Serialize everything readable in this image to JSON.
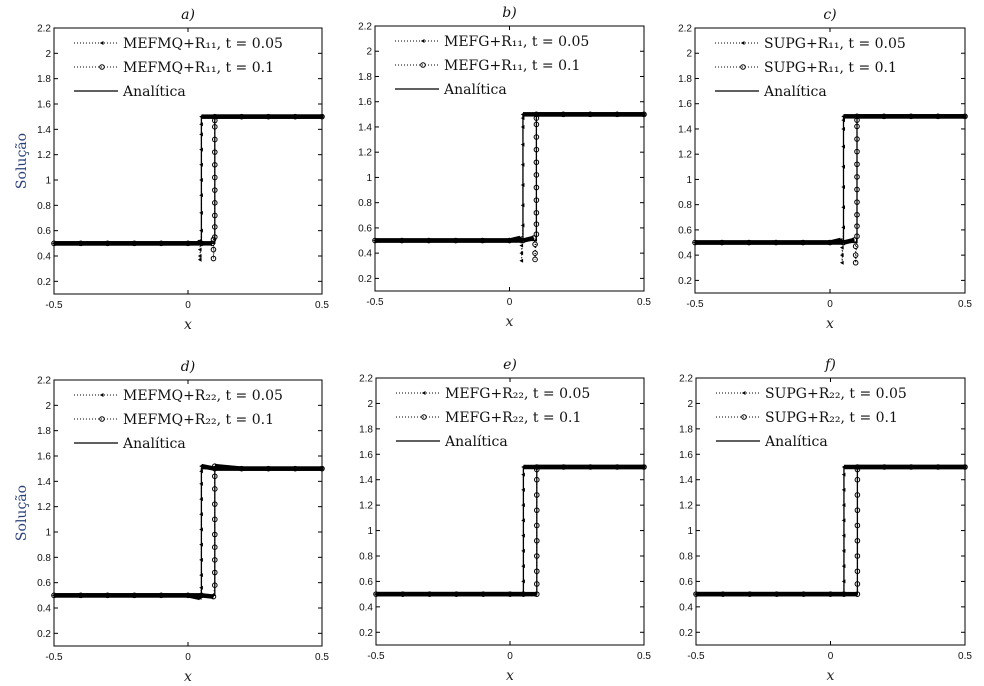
{
  "chart_data": [
    {
      "type": "line",
      "title": "a)",
      "xlabel": "x",
      "ylabel": "Solução",
      "xlim": [
        -0.5,
        0.5
      ],
      "ylim": [
        0.1,
        2.2
      ],
      "xticks": [
        "-0.5",
        "0",
        "0.5"
      ],
      "yticks": [
        "0.2",
        "0.4",
        "0.6",
        "0.8",
        "1",
        "1.2",
        "1.4",
        "1.6",
        "1.8",
        "2",
        "2.2"
      ],
      "legend_position": "top-left",
      "series": [
        {
          "name": "MEFMQ+R₁₁, t = 0.05",
          "marker": "triangle-left",
          "style": "dotted",
          "x": [
            -0.5,
            -0.4,
            -0.3,
            -0.2,
            -0.1,
            0,
            0.04,
            0.045,
            0.045,
            0.045,
            0.045,
            0.05,
            0.05,
            0.05,
            0.05,
            0.05,
            0.05,
            0.05,
            0.05,
            0.05,
            0.1,
            0.2,
            0.3,
            0.4,
            0.5
          ],
          "y": [
            0.5,
            0.5,
            0.5,
            0.5,
            0.5,
            0.5,
            0.5,
            0.52,
            0.45,
            0.4,
            0.37,
            0.6,
            0.74,
            0.88,
            1.0,
            1.12,
            1.24,
            1.36,
            1.44,
            1.5,
            1.5,
            1.5,
            1.5,
            1.5,
            1.5
          ]
        },
        {
          "name": "MEFMQ+R₁₁, t = 0.1",
          "marker": "circle",
          "style": "dotted",
          "x": [
            -0.5,
            -0.4,
            -0.3,
            -0.2,
            -0.1,
            0,
            0.05,
            0.09,
            0.095,
            0.095,
            0.095,
            0.1,
            0.1,
            0.1,
            0.1,
            0.1,
            0.1,
            0.1,
            0.1,
            0.1,
            0.1,
            0.1,
            0.1,
            0.2,
            0.3,
            0.4,
            0.5
          ],
          "y": [
            0.5,
            0.5,
            0.5,
            0.5,
            0.5,
            0.5,
            0.5,
            0.5,
            0.53,
            0.45,
            0.38,
            0.55,
            0.63,
            0.72,
            0.82,
            0.92,
            1.02,
            1.12,
            1.22,
            1.32,
            1.42,
            1.47,
            1.5,
            1.5,
            1.5,
            1.5,
            1.5
          ]
        },
        {
          "name": "Analítica",
          "marker": "none",
          "style": "solid",
          "x": [
            -0.5,
            0.05,
            0.05,
            0.5
          ],
          "y": [
            0.5,
            0.5,
            1.5,
            1.5
          ]
        },
        {
          "name": "Analítica (t = 0.1)",
          "marker": "none",
          "style": "solid",
          "legend": false,
          "x": [
            -0.5,
            0.1,
            0.1,
            0.5
          ],
          "y": [
            0.5,
            0.5,
            1.5,
            1.5
          ]
        }
      ]
    },
    {
      "type": "line",
      "title": "b)",
      "xlabel": "x",
      "ylabel": "",
      "xlim": [
        -0.5,
        0.5
      ],
      "ylim": [
        0.1,
        2.2
      ],
      "xticks": [
        "-0.5",
        "0",
        "0.5"
      ],
      "yticks": [
        "0.2",
        "0.4",
        "0.6",
        "0.8",
        "1",
        "1.2",
        "1.4",
        "1.6",
        "1.8",
        "2",
        "2.2"
      ],
      "legend_position": "top-left",
      "series": [
        {
          "name": "MEFG+R₁₁, t = 0.05",
          "marker": "triangle-left",
          "style": "dotted",
          "x": [
            -0.5,
            -0.4,
            -0.3,
            -0.2,
            -0.1,
            0,
            0.04,
            0.045,
            0.045,
            0.045,
            0.05,
            0.05,
            0.05,
            0.05,
            0.05,
            0.05,
            0.05,
            0.05,
            0.1,
            0.2,
            0.3,
            0.4,
            0.5
          ],
          "y": [
            0.5,
            0.5,
            0.5,
            0.5,
            0.5,
            0.5,
            0.52,
            0.46,
            0.4,
            0.34,
            0.62,
            0.78,
            0.94,
            1.1,
            1.26,
            1.4,
            1.47,
            1.5,
            1.5,
            1.5,
            1.5,
            1.5,
            1.5
          ]
        },
        {
          "name": "MEFG+R₁₁, t = 0.1",
          "marker": "circle",
          "style": "dotted",
          "x": [
            -0.5,
            -0.4,
            -0.3,
            -0.2,
            -0.1,
            0,
            0.05,
            0.09,
            0.095,
            0.095,
            0.095,
            0.1,
            0.1,
            0.1,
            0.1,
            0.1,
            0.1,
            0.1,
            0.1,
            0.1,
            0.1,
            0.1,
            0.1,
            0.2,
            0.3,
            0.4,
            0.5
          ],
          "y": [
            0.5,
            0.5,
            0.5,
            0.5,
            0.5,
            0.5,
            0.5,
            0.52,
            0.47,
            0.4,
            0.35,
            0.55,
            0.63,
            0.72,
            0.82,
            0.92,
            1.02,
            1.12,
            1.22,
            1.32,
            1.42,
            1.47,
            1.5,
            1.5,
            1.5,
            1.5,
            1.5
          ]
        },
        {
          "name": "Analítica",
          "marker": "none",
          "style": "solid",
          "x": [
            -0.5,
            0.05,
            0.05,
            0.5
          ],
          "y": [
            0.5,
            0.5,
            1.5,
            1.5
          ]
        },
        {
          "name": "Analítica (t = 0.1)",
          "marker": "none",
          "style": "solid",
          "legend": false,
          "x": [
            -0.5,
            0.1,
            0.1,
            0.5
          ],
          "y": [
            0.5,
            0.5,
            1.5,
            1.5
          ]
        }
      ]
    },
    {
      "type": "line",
      "title": "c)",
      "xlabel": "x",
      "ylabel": "",
      "xlim": [
        -0.5,
        0.5
      ],
      "ylim": [
        0.1,
        2.2
      ],
      "xticks": [
        "-0.5",
        "0",
        "0.5"
      ],
      "yticks": [
        "0.2",
        "0.4",
        "0.6",
        "0.8",
        "1",
        "1.2",
        "1.4",
        "1.6",
        "1.8",
        "2",
        "2.2"
      ],
      "legend_position": "top-left",
      "series": [
        {
          "name": "SUPG+R₁₁, t = 0.05",
          "marker": "triangle-left",
          "style": "dotted",
          "x": [
            -0.5,
            -0.4,
            -0.3,
            -0.2,
            -0.1,
            0,
            0.04,
            0.045,
            0.045,
            0.045,
            0.05,
            0.05,
            0.05,
            0.05,
            0.05,
            0.05,
            0.05,
            0.05,
            0.1,
            0.2,
            0.3,
            0.4,
            0.5
          ],
          "y": [
            0.5,
            0.5,
            0.5,
            0.5,
            0.5,
            0.5,
            0.52,
            0.46,
            0.4,
            0.34,
            0.62,
            0.78,
            0.94,
            1.1,
            1.26,
            1.4,
            1.47,
            1.5,
            1.5,
            1.5,
            1.5,
            1.5,
            1.5
          ]
        },
        {
          "name": "SUPG+R₁₁, t = 0.1",
          "marker": "circle",
          "style": "dotted",
          "x": [
            -0.5,
            -0.4,
            -0.3,
            -0.2,
            -0.1,
            0,
            0.05,
            0.09,
            0.095,
            0.095,
            0.095,
            0.1,
            0.1,
            0.1,
            0.1,
            0.1,
            0.1,
            0.1,
            0.1,
            0.1,
            0.1,
            0.1,
            0.1,
            0.2,
            0.3,
            0.4,
            0.5
          ],
          "y": [
            0.5,
            0.5,
            0.5,
            0.5,
            0.5,
            0.5,
            0.5,
            0.52,
            0.47,
            0.4,
            0.34,
            0.55,
            0.63,
            0.72,
            0.82,
            0.92,
            1.02,
            1.12,
            1.22,
            1.32,
            1.42,
            1.47,
            1.5,
            1.5,
            1.5,
            1.5,
            1.5
          ]
        },
        {
          "name": "Analítica",
          "marker": "none",
          "style": "solid",
          "x": [
            -0.5,
            0.05,
            0.05,
            0.5
          ],
          "y": [
            0.5,
            0.5,
            1.5,
            1.5
          ]
        },
        {
          "name": "Analítica (t = 0.1)",
          "marker": "none",
          "style": "solid",
          "legend": false,
          "x": [
            -0.5,
            0.1,
            0.1,
            0.5
          ],
          "y": [
            0.5,
            0.5,
            1.5,
            1.5
          ]
        }
      ]
    },
    {
      "type": "line",
      "title": "d)",
      "xlabel": "x",
      "ylabel": "Solução",
      "xlim": [
        -0.5,
        0.5
      ],
      "ylim": [
        0.1,
        2.2
      ],
      "xticks": [
        "-0.5",
        "0",
        "0.5"
      ],
      "yticks": [
        "0.2",
        "0.4",
        "0.6",
        "0.8",
        "1",
        "1.2",
        "1.4",
        "1.6",
        "1.8",
        "2",
        "2.2"
      ],
      "legend_position": "top-left",
      "series": [
        {
          "name": "MEFMQ+R₂₂, t = 0.05",
          "marker": "triangle-left",
          "style": "dotted",
          "x": [
            -0.5,
            -0.4,
            -0.3,
            -0.2,
            -0.1,
            0,
            0.045,
            0.05,
            0.05,
            0.05,
            0.05,
            0.05,
            0.05,
            0.05,
            0.05,
            0.05,
            0.05,
            0.1,
            0.2,
            0.3,
            0.4,
            0.5
          ],
          "y": [
            0.5,
            0.5,
            0.5,
            0.5,
            0.5,
            0.5,
            0.48,
            0.56,
            0.66,
            0.78,
            0.9,
            1.02,
            1.14,
            1.26,
            1.38,
            1.48,
            1.52,
            1.5,
            1.5,
            1.5,
            1.5,
            1.5
          ]
        },
        {
          "name": "MEFMQ+R₂₂, t = 0.1",
          "marker": "circle",
          "style": "dotted",
          "x": [
            -0.5,
            -0.4,
            -0.3,
            -0.2,
            -0.1,
            0,
            0.05,
            0.095,
            0.1,
            0.1,
            0.1,
            0.1,
            0.1,
            0.1,
            0.1,
            0.1,
            0.1,
            0.1,
            0.1,
            0.2,
            0.3,
            0.4,
            0.5
          ],
          "y": [
            0.5,
            0.5,
            0.5,
            0.5,
            0.5,
            0.5,
            0.5,
            0.49,
            0.58,
            0.68,
            0.78,
            0.88,
            0.98,
            1.1,
            1.22,
            1.34,
            1.44,
            1.5,
            1.52,
            1.5,
            1.5,
            1.5,
            1.5
          ]
        },
        {
          "name": "Analítica",
          "marker": "none",
          "style": "solid",
          "x": [
            -0.5,
            0.05,
            0.05,
            0.5
          ],
          "y": [
            0.5,
            0.5,
            1.5,
            1.5
          ]
        },
        {
          "name": "Analítica (t = 0.1)",
          "marker": "none",
          "style": "solid",
          "legend": false,
          "x": [
            -0.5,
            0.1,
            0.1,
            0.5
          ],
          "y": [
            0.5,
            0.5,
            1.5,
            1.5
          ]
        }
      ]
    },
    {
      "type": "line",
      "title": "e)",
      "xlabel": "x",
      "ylabel": "",
      "xlim": [
        -0.5,
        0.5
      ],
      "ylim": [
        0.1,
        2.2
      ],
      "xticks": [
        "-0.5",
        "0",
        "0.5"
      ],
      "yticks": [
        "0.2",
        "0.4",
        "0.6",
        "0.8",
        "1",
        "1.2",
        "1.4",
        "1.6",
        "1.8",
        "2",
        "2.2"
      ],
      "legend_position": "top-left",
      "series": [
        {
          "name": "MEFG+R₂₂, t = 0.05",
          "marker": "triangle-left",
          "style": "dotted",
          "x": [
            -0.5,
            -0.4,
            -0.3,
            -0.2,
            -0.1,
            0,
            0.05,
            0.05,
            0.05,
            0.05,
            0.05,
            0.05,
            0.05,
            0.05,
            0.05,
            0.05,
            0.1,
            0.2,
            0.3,
            0.4,
            0.5
          ],
          "y": [
            0.5,
            0.5,
            0.5,
            0.5,
            0.5,
            0.5,
            0.5,
            0.6,
            0.72,
            0.84,
            0.96,
            1.08,
            1.2,
            1.32,
            1.44,
            1.5,
            1.5,
            1.5,
            1.5,
            1.5,
            1.5
          ]
        },
        {
          "name": "MEFG+R₂₂, t = 0.1",
          "marker": "circle",
          "style": "dotted",
          "x": [
            -0.5,
            -0.4,
            -0.3,
            -0.2,
            -0.1,
            0,
            0.05,
            0.1,
            0.1,
            0.1,
            0.1,
            0.1,
            0.1,
            0.1,
            0.1,
            0.1,
            0.1,
            0.1,
            0.2,
            0.3,
            0.4,
            0.5
          ],
          "y": [
            0.5,
            0.5,
            0.5,
            0.5,
            0.5,
            0.5,
            0.5,
            0.5,
            0.58,
            0.68,
            0.8,
            0.92,
            1.04,
            1.16,
            1.28,
            1.4,
            1.48,
            1.5,
            1.5,
            1.5,
            1.5,
            1.5
          ]
        },
        {
          "name": "Analítica",
          "marker": "none",
          "style": "solid",
          "x": [
            -0.5,
            0.05,
            0.05,
            0.5
          ],
          "y": [
            0.5,
            0.5,
            1.5,
            1.5
          ]
        },
        {
          "name": "Analítica (t = 0.1)",
          "marker": "none",
          "style": "solid",
          "legend": false,
          "x": [
            -0.5,
            0.1,
            0.1,
            0.5
          ],
          "y": [
            0.5,
            0.5,
            1.5,
            1.5
          ]
        }
      ]
    },
    {
      "type": "line",
      "title": "f)",
      "xlabel": "x",
      "ylabel": "",
      "xlim": [
        -0.5,
        0.5
      ],
      "ylim": [
        0.1,
        2.2
      ],
      "xticks": [
        "-0.5",
        "0",
        "0.5"
      ],
      "yticks": [
        "0.2",
        "0.4",
        "0.6",
        "0.8",
        "1",
        "1.2",
        "1.4",
        "1.6",
        "1.8",
        "2",
        "2.2"
      ],
      "legend_position": "top-left",
      "series": [
        {
          "name": "SUPG+R₂₂, t = 0.05",
          "marker": "triangle-left",
          "style": "dotted",
          "x": [
            -0.5,
            -0.4,
            -0.3,
            -0.2,
            -0.1,
            0,
            0.05,
            0.05,
            0.05,
            0.05,
            0.05,
            0.05,
            0.05,
            0.05,
            0.05,
            0.05,
            0.1,
            0.2,
            0.3,
            0.4,
            0.5
          ],
          "y": [
            0.5,
            0.5,
            0.5,
            0.5,
            0.5,
            0.5,
            0.5,
            0.6,
            0.72,
            0.84,
            0.96,
            1.08,
            1.2,
            1.32,
            1.44,
            1.5,
            1.5,
            1.5,
            1.5,
            1.5,
            1.5
          ]
        },
        {
          "name": "SUPG+R₂₂, t = 0.1",
          "marker": "circle",
          "style": "dotted",
          "x": [
            -0.5,
            -0.4,
            -0.3,
            -0.2,
            -0.1,
            0,
            0.05,
            0.1,
            0.1,
            0.1,
            0.1,
            0.1,
            0.1,
            0.1,
            0.1,
            0.1,
            0.1,
            0.1,
            0.2,
            0.3,
            0.4,
            0.5
          ],
          "y": [
            0.5,
            0.5,
            0.5,
            0.5,
            0.5,
            0.5,
            0.5,
            0.5,
            0.58,
            0.68,
            0.8,
            0.92,
            1.04,
            1.16,
            1.28,
            1.4,
            1.48,
            1.5,
            1.5,
            1.5,
            1.5,
            1.5
          ]
        },
        {
          "name": "Analítica",
          "marker": "none",
          "style": "solid",
          "x": [
            -0.5,
            0.05,
            0.05,
            0.5
          ],
          "y": [
            0.5,
            0.5,
            1.5,
            1.5
          ]
        },
        {
          "name": "Analítica (t = 0.1)",
          "marker": "none",
          "style": "solid",
          "legend": false,
          "x": [
            -0.5,
            0.1,
            0.1,
            0.5
          ],
          "y": [
            0.5,
            0.5,
            1.5,
            1.5
          ]
        }
      ]
    }
  ]
}
